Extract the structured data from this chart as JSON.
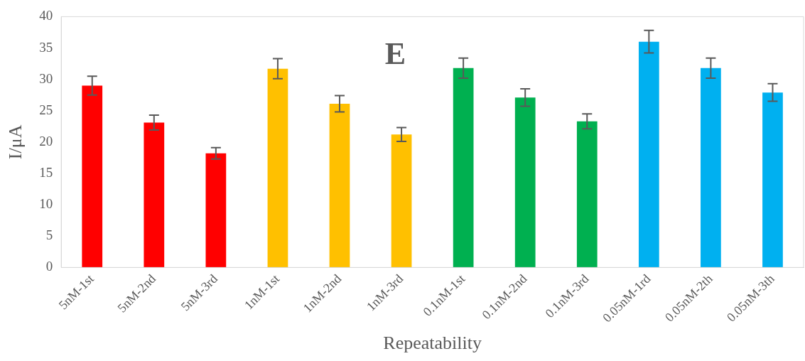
{
  "chart_data": {
    "type": "bar",
    "xlabel": "Repeatability",
    "ylabel": "I/μA",
    "annotations": [
      "E"
    ],
    "categories": [
      "5nM-1st",
      "5nM-2nd",
      "5nM-3rd",
      "1nM-1st",
      "1nM-2nd",
      "1nM-3rd",
      "0.1nM-1st",
      "0.1nM-2nd",
      "0.1nM-3rd",
      "0.05nM-1rd",
      "0.05nM-2th",
      "0.05nM-3th"
    ],
    "values": [
      29.0,
      23.1,
      18.2,
      31.7,
      26.1,
      21.2,
      31.8,
      27.1,
      23.3,
      36.0,
      31.8,
      27.9
    ],
    "errors": [
      1.5,
      1.2,
      0.9,
      1.6,
      1.3,
      1.1,
      1.6,
      1.4,
      1.2,
      1.8,
      1.6,
      1.4
    ],
    "colors": [
      "#ff0000",
      "#ff0000",
      "#ff0000",
      "#ffc000",
      "#ffc000",
      "#ffc000",
      "#00b050",
      "#00b050",
      "#00b050",
      "#00b0f0",
      "#00b0f0",
      "#00b0f0"
    ],
    "ylim": [
      0,
      40
    ],
    "yticks": [
      0,
      5,
      10,
      15,
      20,
      25,
      30,
      35,
      40
    ],
    "grid": false,
    "legend": false
  }
}
